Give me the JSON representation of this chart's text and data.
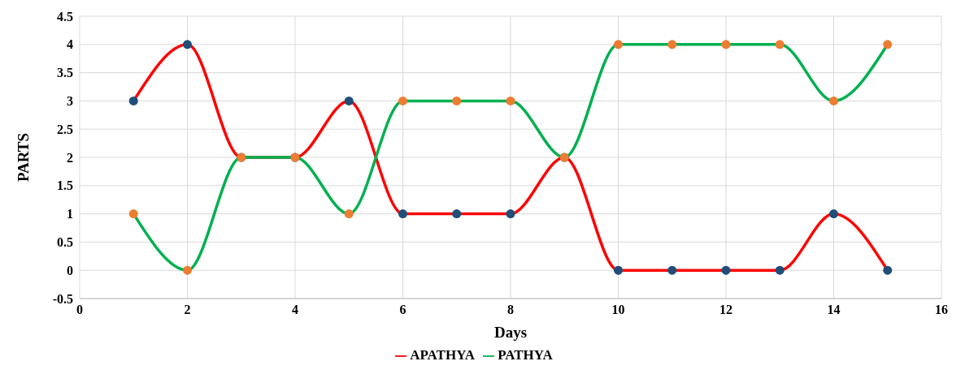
{
  "chart_data": {
    "type": "line",
    "xlabel": "Days",
    "ylabel": "PARTS",
    "x": [
      1,
      2,
      3,
      4,
      5,
      6,
      7,
      8,
      9,
      10,
      11,
      12,
      13,
      14,
      15
    ],
    "series": [
      {
        "name": "APATHYA",
        "color": "#ff0000",
        "colors": [
          "#1f4e79",
          "#1f4e79",
          "#1f4e79",
          "#1f4e79",
          "#1f4e79",
          "#1f4e79",
          "#1f4e79",
          "#1f4e79",
          "#1f4e79",
          "#1f4e79",
          "#1f4e79",
          "#1f4e79",
          "#1f4e79",
          "#1f4e79",
          "#1f4e79"
        ],
        "values": [
          3,
          4,
          2,
          2,
          3,
          1,
          1,
          1,
          2,
          0,
          0,
          0,
          0,
          1,
          0
        ]
      },
      {
        "name": "PATHYA",
        "color": "#00b050",
        "colors": [
          "#ed7d31",
          "#ed7d31",
          "#ed7d31",
          "#ed7d31",
          "#ed7d31",
          "#ed7d31",
          "#ed7d31",
          "#ed7d31",
          "#ed7d31",
          "#ed7d31",
          "#ed7d31",
          "#ed7d31",
          "#ed7d31",
          "#ed7d31",
          "#ed7d31"
        ],
        "values": [
          1,
          0,
          2,
          2,
          1,
          3,
          3,
          3,
          2,
          4,
          4,
          4,
          4,
          3,
          4
        ]
      }
    ],
    "xlim": [
      0,
      16
    ],
    "xticks": [
      0,
      2,
      4,
      6,
      8,
      10,
      12,
      14,
      16
    ],
    "ylim": [
      -0.5,
      4.5
    ],
    "yticks": [
      -0.5,
      0,
      0.5,
      1,
      1.5,
      2,
      2.5,
      3,
      3.5,
      4,
      4.5
    ],
    "grid": true,
    "legend": "bottom",
    "marker": "circle",
    "line_style": "solid"
  }
}
